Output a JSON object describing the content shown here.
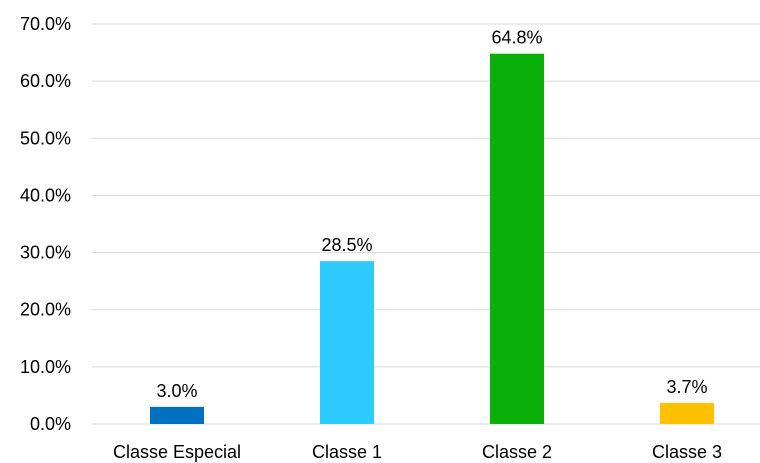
{
  "chart_data": {
    "type": "bar",
    "categories": [
      "Classe Especial",
      "Classe 1",
      "Classe 2",
      "Classe 3"
    ],
    "values": [
      3.0,
      28.5,
      64.8,
      3.7
    ],
    "data_labels": [
      "3.0%",
      "28.5%",
      "64.8%",
      "3.7%"
    ],
    "colors": [
      "#0070c0",
      "#2ecbff",
      "#0aaf0a",
      "#ffc000"
    ],
    "ylim": [
      0,
      70
    ],
    "yticks": [
      0,
      10,
      20,
      30,
      40,
      50,
      60,
      70
    ],
    "ytick_labels": [
      "0.0%",
      "10.0%",
      "20.0%",
      "30.0%",
      "40.0%",
      "50.0%",
      "60.0%",
      "70.0%"
    ],
    "grid": true,
    "legend": "none",
    "title": "",
    "xlabel": "",
    "ylabel": ""
  }
}
